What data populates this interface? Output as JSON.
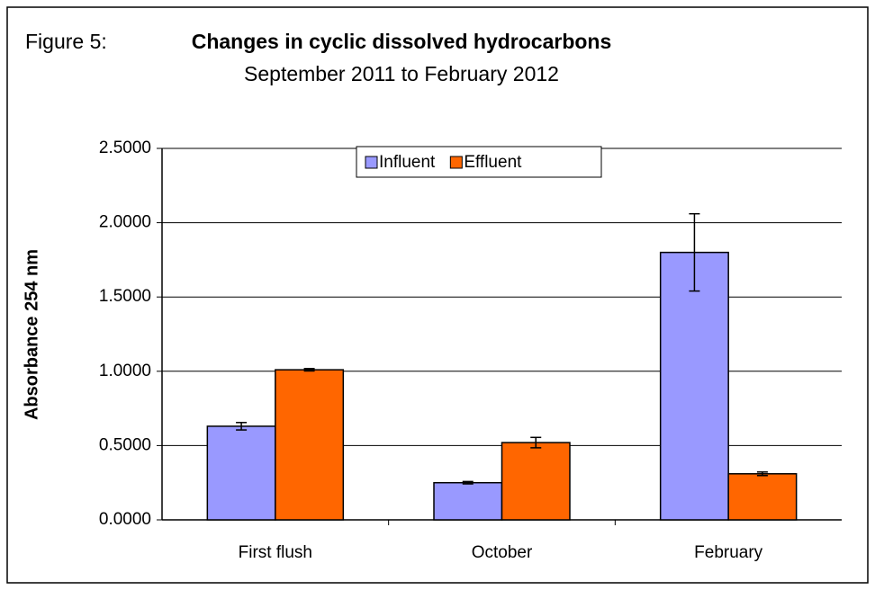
{
  "chart_data": {
    "type": "bar",
    "label": "Figure 5:",
    "title": "Changes in cyclic dissolved hydrocarbons",
    "subtitle": "September 2011 to February 2012",
    "y_label": "Absorbance 254 nm",
    "categories": [
      "First flush",
      "October",
      "February"
    ],
    "series": [
      {
        "name": "Influent",
        "color": "#9999ff",
        "values": [
          0.63,
          0.25,
          1.8
        ],
        "errors": [
          0.025,
          0.008,
          0.26
        ]
      },
      {
        "name": "Effluent",
        "color": "#ff6600",
        "values": [
          1.01,
          0.52,
          0.31
        ],
        "errors": [
          0.008,
          0.035,
          0.012
        ]
      }
    ],
    "ylim": [
      0,
      2.5
    ],
    "yticks": [
      {
        "value": 0,
        "label": "0.0000"
      },
      {
        "value": 0.5,
        "label": "0.5000"
      },
      {
        "value": 1,
        "label": "1.0000"
      },
      {
        "value": 1.5,
        "label": "1.5000"
      },
      {
        "value": 2,
        "label": "2.0000"
      },
      {
        "value": 2.5,
        "label": "2.5000"
      }
    ],
    "grid": true,
    "legend": "top"
  }
}
